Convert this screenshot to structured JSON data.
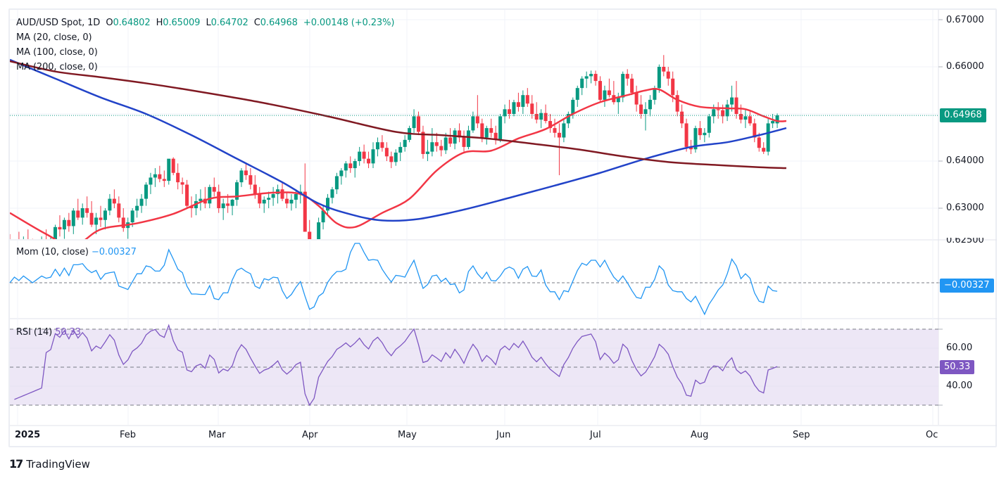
{
  "header": {
    "symbol": "AUD/USD Spot, 1D",
    "open_label": "O",
    "open": "0.64802",
    "high_label": "H",
    "high": "0.65009",
    "low_label": "L",
    "low": "0.64702",
    "close_label": "C",
    "close": "0.64968",
    "change": "+0.00148 (+0.23%)"
  },
  "indicators": {
    "ma20": "MA (20, close, 0)",
    "ma100": "MA (100, close, 0)",
    "ma200": "MA (200, close, 0)",
    "mom_label": "Mom (10, close)",
    "mom_value": "−0.00327",
    "rsi_label": "RSI (14)",
    "rsi_value": "50.33"
  },
  "price_axis": {
    "ticks": [
      "0.67000",
      "0.66000",
      "0.64000",
      "0.63000"
    ],
    "clipped_tick": "0.62500",
    "current_price_tag": "0.64968"
  },
  "mom_axis": {
    "current_tag": "−0.00327"
  },
  "rsi_axis": {
    "ticks": [
      "60.00",
      "40.00"
    ],
    "current_tag": "50.33"
  },
  "time_axis": [
    "2025",
    "Feb",
    "Mar",
    "Apr",
    "May",
    "Jun",
    "Jul",
    "Aug",
    "Sep",
    "Oc"
  ],
  "branding": {
    "logo_text": "TradingView",
    "logo_mark": "17"
  },
  "colors": {
    "up": "#089981",
    "down": "#f23645",
    "ma20": "#f23645",
    "ma100": "#2243c8",
    "ma200": "#801922",
    "mom": "#2196f3",
    "rsi": "#7e57c2",
    "rsi_band": "#ede7f6"
  },
  "chart_data": {
    "type": "candlestick",
    "title": "AUD/USD Spot, 1D",
    "ylim": [
      0.6235,
      0.6715
    ],
    "x_range": [
      "2025-01-01",
      "2025-10-01"
    ],
    "candles_approx": [
      [
        0.6215,
        0.6245,
        0.619,
        0.62
      ],
      [
        0.62,
        0.623,
        0.618,
        0.6225
      ],
      [
        0.6225,
        0.625,
        0.62,
        0.621
      ],
      [
        0.621,
        0.624,
        0.6185,
        0.623
      ],
      [
        0.623,
        0.6255,
        0.6205,
        0.6215
      ],
      [
        0.6215,
        0.6235,
        0.619,
        0.62
      ],
      [
        0.62,
        0.6225,
        0.618,
        0.6215
      ],
      [
        0.6215,
        0.624,
        0.62,
        0.623
      ],
      [
        0.623,
        0.6255,
        0.621,
        0.622
      ],
      [
        0.622,
        0.624,
        0.6195,
        0.6225
      ],
      [
        0.6225,
        0.6265,
        0.6215,
        0.626
      ],
      [
        0.626,
        0.6285,
        0.624,
        0.6255
      ],
      [
        0.6255,
        0.628,
        0.6235,
        0.6275
      ],
      [
        0.6275,
        0.629,
        0.625,
        0.6262
      ],
      [
        0.6262,
        0.63,
        0.6245,
        0.6295
      ],
      [
        0.6295,
        0.632,
        0.6275,
        0.628
      ],
      [
        0.628,
        0.631,
        0.6265,
        0.63
      ],
      [
        0.63,
        0.6325,
        0.628,
        0.629
      ],
      [
        0.629,
        0.6315,
        0.626,
        0.6265
      ],
      [
        0.6265,
        0.629,
        0.6245,
        0.628
      ],
      [
        0.628,
        0.6305,
        0.626,
        0.6275
      ],
      [
        0.6275,
        0.63,
        0.6255,
        0.6295
      ],
      [
        0.6295,
        0.633,
        0.6285,
        0.632
      ],
      [
        0.632,
        0.634,
        0.63,
        0.631
      ],
      [
        0.631,
        0.6325,
        0.627,
        0.628
      ],
      [
        0.628,
        0.63,
        0.625,
        0.6258
      ],
      [
        0.6258,
        0.628,
        0.6235,
        0.627
      ],
      [
        0.627,
        0.63,
        0.626,
        0.6295
      ],
      [
        0.6295,
        0.632,
        0.628,
        0.6305
      ],
      [
        0.6305,
        0.633,
        0.629,
        0.632
      ],
      [
        0.632,
        0.6355,
        0.6305,
        0.635
      ],
      [
        0.635,
        0.6375,
        0.633,
        0.6365
      ],
      [
        0.6365,
        0.6385,
        0.6345,
        0.6372
      ],
      [
        0.6372,
        0.639,
        0.6355,
        0.6362
      ],
      [
        0.6362,
        0.638,
        0.6345,
        0.6358
      ],
      [
        0.6358,
        0.64,
        0.635,
        0.6405
      ],
      [
        0.6405,
        0.6408,
        0.637,
        0.6375
      ],
      [
        0.6375,
        0.6395,
        0.634,
        0.6355
      ],
      [
        0.6355,
        0.6365,
        0.633,
        0.635
      ],
      [
        0.635,
        0.636,
        0.63,
        0.6305
      ],
      [
        0.6305,
        0.6325,
        0.628,
        0.63
      ],
      [
        0.63,
        0.633,
        0.6285,
        0.6315
      ],
      [
        0.6315,
        0.634,
        0.6295,
        0.632
      ],
      [
        0.632,
        0.6345,
        0.63,
        0.631
      ],
      [
        0.631,
        0.635,
        0.63,
        0.6345
      ],
      [
        0.6345,
        0.6365,
        0.6325,
        0.6335
      ],
      [
        0.6335,
        0.635,
        0.629,
        0.63
      ],
      [
        0.63,
        0.632,
        0.6275,
        0.631
      ],
      [
        0.631,
        0.633,
        0.629,
        0.6305
      ],
      [
        0.6305,
        0.632,
        0.6285,
        0.6318
      ],
      [
        0.6318,
        0.636,
        0.6305,
        0.6355
      ],
      [
        0.6355,
        0.6385,
        0.6345,
        0.638
      ],
      [
        0.638,
        0.6395,
        0.636,
        0.637
      ],
      [
        0.637,
        0.6385,
        0.634,
        0.635
      ],
      [
        0.635,
        0.637,
        0.632,
        0.633
      ],
      [
        0.633,
        0.6345,
        0.63,
        0.631
      ],
      [
        0.631,
        0.6325,
        0.629,
        0.6318
      ],
      [
        0.6318,
        0.6335,
        0.63,
        0.6322
      ],
      [
        0.6322,
        0.6345,
        0.6305,
        0.633
      ],
      [
        0.633,
        0.635,
        0.631,
        0.634
      ],
      [
        0.634,
        0.6355,
        0.6315,
        0.632
      ],
      [
        0.632,
        0.6335,
        0.63,
        0.631
      ],
      [
        0.631,
        0.633,
        0.6295,
        0.6318
      ],
      [
        0.6318,
        0.634,
        0.63,
        0.633
      ],
      [
        0.633,
        0.635,
        0.631,
        0.6335
      ],
      [
        0.6335,
        0.6395,
        0.627,
        0.625
      ],
      [
        0.625,
        0.6275,
        0.619,
        0.62
      ],
      [
        0.62,
        0.623,
        0.617,
        0.6215
      ],
      [
        0.6215,
        0.628,
        0.62,
        0.627
      ],
      [
        0.627,
        0.6305,
        0.6255,
        0.6295
      ],
      [
        0.6295,
        0.633,
        0.6285,
        0.6322
      ],
      [
        0.6322,
        0.6345,
        0.631,
        0.634
      ],
      [
        0.634,
        0.6375,
        0.633,
        0.6368
      ],
      [
        0.6368,
        0.6385,
        0.635,
        0.638
      ],
      [
        0.638,
        0.64,
        0.6365,
        0.6395
      ],
      [
        0.6395,
        0.641,
        0.6375,
        0.6385
      ],
      [
        0.6385,
        0.6405,
        0.6365,
        0.64
      ],
      [
        0.64,
        0.643,
        0.639,
        0.642
      ],
      [
        0.642,
        0.6435,
        0.6395,
        0.6405
      ],
      [
        0.6405,
        0.642,
        0.6385,
        0.6395
      ],
      [
        0.6395,
        0.644,
        0.6385,
        0.6425
      ],
      [
        0.6425,
        0.645,
        0.641,
        0.644
      ],
      [
        0.644,
        0.6455,
        0.642,
        0.6428
      ],
      [
        0.6428,
        0.644,
        0.64,
        0.641
      ],
      [
        0.641,
        0.642,
        0.6385,
        0.6398
      ],
      [
        0.6398,
        0.6425,
        0.639,
        0.6418
      ],
      [
        0.6418,
        0.644,
        0.64,
        0.643
      ],
      [
        0.643,
        0.6455,
        0.642,
        0.6445
      ],
      [
        0.6445,
        0.6475,
        0.644,
        0.647
      ],
      [
        0.647,
        0.651,
        0.646,
        0.6495
      ],
      [
        0.6495,
        0.6505,
        0.6455,
        0.6462
      ],
      [
        0.6462,
        0.6475,
        0.6405,
        0.6415
      ],
      [
        0.6415,
        0.6445,
        0.64,
        0.642
      ],
      [
        0.642,
        0.647,
        0.641,
        0.644
      ],
      [
        0.644,
        0.646,
        0.642,
        0.6432
      ],
      [
        0.6432,
        0.6445,
        0.641,
        0.6423
      ],
      [
        0.6423,
        0.646,
        0.6415,
        0.645
      ],
      [
        0.645,
        0.647,
        0.643,
        0.6437
      ],
      [
        0.6437,
        0.647,
        0.6425,
        0.6465
      ],
      [
        0.6465,
        0.648,
        0.644,
        0.645
      ],
      [
        0.645,
        0.6465,
        0.642,
        0.643
      ],
      [
        0.643,
        0.6475,
        0.6425,
        0.6465
      ],
      [
        0.6465,
        0.6505,
        0.646,
        0.6495
      ],
      [
        0.6495,
        0.654,
        0.647,
        0.648
      ],
      [
        0.648,
        0.649,
        0.644,
        0.645
      ],
      [
        0.645,
        0.6475,
        0.6435,
        0.647
      ],
      [
        0.647,
        0.649,
        0.645,
        0.646
      ],
      [
        0.646,
        0.6475,
        0.6435,
        0.6445
      ],
      [
        0.6445,
        0.65,
        0.644,
        0.6495
      ],
      [
        0.6495,
        0.652,
        0.648,
        0.651
      ],
      [
        0.651,
        0.653,
        0.649,
        0.65
      ],
      [
        0.65,
        0.653,
        0.6495,
        0.6525
      ],
      [
        0.6525,
        0.6545,
        0.6505,
        0.6515
      ],
      [
        0.6515,
        0.655,
        0.65,
        0.654
      ],
      [
        0.654,
        0.6555,
        0.6515,
        0.6522
      ],
      [
        0.6522,
        0.654,
        0.649,
        0.65
      ],
      [
        0.65,
        0.6525,
        0.648,
        0.6488
      ],
      [
        0.6488,
        0.651,
        0.647,
        0.6502
      ],
      [
        0.6502,
        0.652,
        0.648,
        0.6485
      ],
      [
        0.6485,
        0.65,
        0.646,
        0.647
      ],
      [
        0.647,
        0.649,
        0.645,
        0.646
      ],
      [
        0.646,
        0.648,
        0.637,
        0.645
      ],
      [
        0.645,
        0.649,
        0.644,
        0.648
      ],
      [
        0.648,
        0.6505,
        0.647,
        0.65
      ],
      [
        0.65,
        0.6535,
        0.649,
        0.653
      ],
      [
        0.653,
        0.656,
        0.6515,
        0.6555
      ],
      [
        0.6555,
        0.658,
        0.654,
        0.6575
      ],
      [
        0.6575,
        0.659,
        0.6555,
        0.658
      ],
      [
        0.658,
        0.6592,
        0.6565,
        0.6585
      ],
      [
        0.6585,
        0.6592,
        0.656,
        0.657
      ],
      [
        0.657,
        0.658,
        0.6525,
        0.653
      ],
      [
        0.653,
        0.656,
        0.6515,
        0.655
      ],
      [
        0.655,
        0.6575,
        0.6535,
        0.654
      ],
      [
        0.654,
        0.657,
        0.652,
        0.6525
      ],
      [
        0.6525,
        0.6545,
        0.65,
        0.6535
      ],
      [
        0.6535,
        0.659,
        0.6525,
        0.6585
      ],
      [
        0.6585,
        0.6595,
        0.656,
        0.6575
      ],
      [
        0.6575,
        0.6585,
        0.654,
        0.6545
      ],
      [
        0.6545,
        0.656,
        0.6505,
        0.652
      ],
      [
        0.652,
        0.654,
        0.649,
        0.65
      ],
      [
        0.65,
        0.6525,
        0.6465,
        0.651
      ],
      [
        0.651,
        0.654,
        0.6495,
        0.653
      ],
      [
        0.653,
        0.656,
        0.652,
        0.6555
      ],
      [
        0.6555,
        0.6605,
        0.6545,
        0.66
      ],
      [
        0.66,
        0.6625,
        0.658,
        0.659
      ],
      [
        0.659,
        0.66,
        0.656,
        0.6575
      ],
      [
        0.6575,
        0.659,
        0.6525,
        0.654
      ],
      [
        0.654,
        0.655,
        0.6495,
        0.6505
      ],
      [
        0.6505,
        0.652,
        0.647,
        0.648
      ],
      [
        0.648,
        0.649,
        0.642,
        0.643
      ],
      [
        0.643,
        0.6445,
        0.6415,
        0.6425
      ],
      [
        0.6425,
        0.6475,
        0.6418,
        0.647
      ],
      [
        0.647,
        0.6485,
        0.6445,
        0.6455
      ],
      [
        0.6455,
        0.647,
        0.644,
        0.646
      ],
      [
        0.646,
        0.65,
        0.645,
        0.6495
      ],
      [
        0.6495,
        0.652,
        0.648,
        0.651
      ],
      [
        0.651,
        0.6525,
        0.649,
        0.6508
      ],
      [
        0.6508,
        0.652,
        0.648,
        0.6495
      ],
      [
        0.6495,
        0.653,
        0.6485,
        0.652
      ],
      [
        0.652,
        0.656,
        0.6505,
        0.6535
      ],
      [
        0.6535,
        0.657,
        0.649,
        0.65
      ],
      [
        0.65,
        0.652,
        0.648,
        0.6488
      ],
      [
        0.6488,
        0.651,
        0.647,
        0.6495
      ],
      [
        0.6495,
        0.6505,
        0.6475,
        0.648
      ],
      [
        0.648,
        0.649,
        0.644,
        0.645
      ],
      [
        0.645,
        0.646,
        0.642,
        0.6428
      ],
      [
        0.6428,
        0.644,
        0.6415,
        0.642
      ],
      [
        0.642,
        0.649,
        0.6412,
        0.648
      ],
      [
        0.648,
        0.65,
        0.647,
        0.6485
      ],
      [
        0.648,
        0.6501,
        0.647,
        0.6497
      ]
    ],
    "series": [
      {
        "name": "MA (20, close, 0)",
        "color": "#f23645",
        "points": [
          [
            0,
            0.629
          ],
          [
            8,
            0.6245
          ],
          [
            14,
            0.622
          ],
          [
            20,
            0.6255
          ],
          [
            28,
            0.6268
          ],
          [
            36,
            0.6288
          ],
          [
            44,
            0.632
          ],
          [
            50,
            0.6325
          ],
          [
            58,
            0.6333
          ],
          [
            64,
            0.633
          ],
          [
            68,
            0.6305
          ],
          [
            72,
            0.6268
          ],
          [
            76,
            0.626
          ],
          [
            82,
            0.629
          ],
          [
            88,
            0.632
          ],
          [
            94,
            0.638
          ],
          [
            100,
            0.6418
          ],
          [
            106,
            0.6422
          ],
          [
            112,
            0.6448
          ],
          [
            118,
            0.6468
          ],
          [
            124,
            0.65
          ],
          [
            130,
            0.6525
          ],
          [
            136,
            0.654
          ],
          [
            140,
            0.655
          ],
          [
            143,
            0.6552
          ],
          [
            147,
            0.653
          ],
          [
            152,
            0.6515
          ],
          [
            158,
            0.6512
          ],
          [
            162,
            0.651
          ],
          [
            166,
            0.6495
          ],
          [
            169,
            0.6485
          ],
          [
            171,
            0.6485
          ]
        ]
      },
      {
        "name": "MA (100, close, 0)",
        "color": "#2243c8",
        "points": [
          [
            0,
            0.6615
          ],
          [
            10,
            0.6575
          ],
          [
            20,
            0.6535
          ],
          [
            30,
            0.65
          ],
          [
            40,
            0.6455
          ],
          [
            50,
            0.6405
          ],
          [
            60,
            0.6355
          ],
          [
            68,
            0.631
          ],
          [
            75,
            0.6287
          ],
          [
            82,
            0.6274
          ],
          [
            90,
            0.6277
          ],
          [
            100,
            0.6297
          ],
          [
            110,
            0.6322
          ],
          [
            120,
            0.6348
          ],
          [
            130,
            0.6375
          ],
          [
            140,
            0.6405
          ],
          [
            150,
            0.643
          ],
          [
            158,
            0.644
          ],
          [
            165,
            0.6455
          ],
          [
            171,
            0.647
          ]
        ]
      },
      {
        "name": "MA (200, close, 0)",
        "color": "#801922",
        "points": [
          [
            0,
            0.6612
          ],
          [
            10,
            0.659
          ],
          [
            20,
            0.6578
          ],
          [
            30,
            0.6565
          ],
          [
            40,
            0.655
          ],
          [
            55,
            0.6525
          ],
          [
            70,
            0.6495
          ],
          [
            85,
            0.6462
          ],
          [
            95,
            0.6455
          ],
          [
            105,
            0.6448
          ],
          [
            115,
            0.6437
          ],
          [
            125,
            0.6425
          ],
          [
            135,
            0.641
          ],
          [
            145,
            0.6398
          ],
          [
            155,
            0.6392
          ],
          [
            165,
            0.6387
          ],
          [
            171,
            0.6385
          ]
        ]
      }
    ],
    "momentum": {
      "name": "Mom (10, close)",
      "last": -0.00327,
      "zero_line": 0
    },
    "rsi": {
      "name": "RSI (14)",
      "last": 50.33,
      "levels": [
        70,
        50,
        30
      ],
      "ticks": [
        60,
        40
      ]
    },
    "price_axis_ticks": [
      0.67,
      0.66,
      0.64,
      0.63
    ],
    "last_price": 0.64968,
    "time_ticks": [
      "2025",
      "Feb",
      "Mar",
      "Apr",
      "May",
      "Jun",
      "Jul",
      "Aug",
      "Sep",
      "Oc"
    ]
  }
}
